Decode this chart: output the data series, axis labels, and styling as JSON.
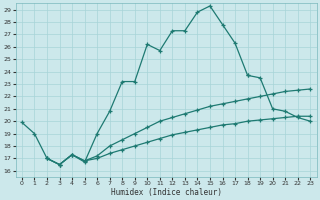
{
  "xlabel": "Humidex (Indice chaleur)",
  "xlim": [
    -0.5,
    23.5
  ],
  "ylim": [
    15.5,
    29.5
  ],
  "yticks": [
    16,
    17,
    18,
    19,
    20,
    21,
    22,
    23,
    24,
    25,
    26,
    27,
    28,
    29
  ],
  "xticks": [
    0,
    1,
    2,
    3,
    4,
    5,
    6,
    7,
    8,
    9,
    10,
    11,
    12,
    13,
    14,
    15,
    16,
    17,
    18,
    19,
    20,
    21,
    22,
    23
  ],
  "bg_color": "#cce8eb",
  "grid_color": "#a8d4d8",
  "line_color": "#1e7a72",
  "series1_x": [
    0,
    1,
    2,
    3,
    4,
    5,
    6,
    7,
    8,
    9,
    10,
    11,
    12,
    13,
    14,
    15,
    16,
    17,
    18
  ],
  "series1_y": [
    19.9,
    19.0,
    17.0,
    16.5,
    17.3,
    16.7,
    19.0,
    20.8,
    23.2,
    23.2,
    26.2,
    25.7,
    27.3,
    27.3,
    28.8,
    29.3,
    27.8,
    26.3,
    23.7
  ],
  "series2_x": [
    18,
    19,
    20,
    21,
    22,
    23
  ],
  "series2_y": [
    23.7,
    23.5,
    21.0,
    20.8,
    20.3,
    20.0
  ],
  "series3_x": [
    2,
    3,
    4,
    5,
    6,
    7,
    8,
    9,
    10,
    11,
    12,
    13,
    14,
    15,
    16,
    17,
    18,
    19,
    20,
    21,
    22,
    23
  ],
  "series3_y": [
    17.0,
    16.5,
    17.3,
    16.8,
    17.2,
    18.0,
    18.5,
    19.0,
    19.5,
    20.0,
    20.3,
    20.6,
    20.9,
    21.2,
    21.4,
    21.6,
    21.8,
    22.0,
    22.2,
    22.4,
    22.5,
    22.6
  ],
  "series4_x": [
    2,
    3,
    4,
    5,
    6,
    7,
    8,
    9,
    10,
    11,
    12,
    13,
    14,
    15,
    16,
    17,
    18,
    19,
    20,
    21,
    22,
    23
  ],
  "series4_y": [
    17.0,
    16.5,
    17.3,
    16.8,
    17.0,
    17.4,
    17.7,
    18.0,
    18.3,
    18.6,
    18.9,
    19.1,
    19.3,
    19.5,
    19.7,
    19.8,
    20.0,
    20.1,
    20.2,
    20.3,
    20.4,
    20.4
  ]
}
